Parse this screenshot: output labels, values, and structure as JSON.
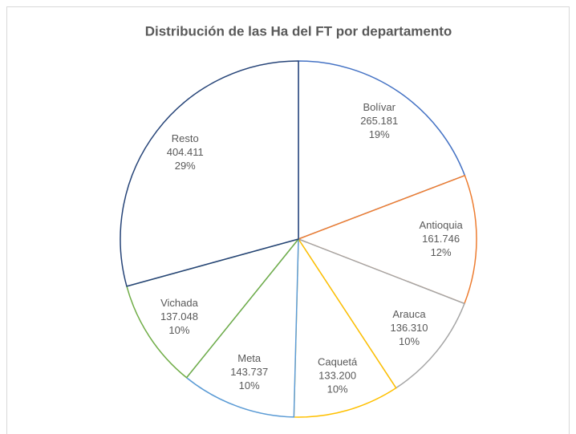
{
  "chart_data": {
    "type": "pie",
    "title": "Distribución de las Ha del FT por departamento",
    "categories": [
      "Bolívar",
      "Antioquia",
      "Arauca",
      "Caquetá",
      "Meta",
      "Vichada",
      "Resto"
    ],
    "values": [
      265181,
      161746,
      136310,
      133200,
      143737,
      137048,
      404411
    ],
    "value_labels": [
      "265.181",
      "161.746",
      "136.310",
      "133.200",
      "143.737",
      "137.048",
      "404.411"
    ],
    "percentages": [
      19,
      12,
      10,
      10,
      10,
      10,
      29
    ],
    "percentage_labels": [
      "19%",
      "12%",
      "10%",
      "10%",
      "10%",
      "10%",
      "29%"
    ],
    "colors": [
      "#4472c4",
      "#ed7d31",
      "#a5a5a5",
      "#ffc000",
      "#5b9bd5",
      "#70ad47",
      "#264478"
    ]
  }
}
